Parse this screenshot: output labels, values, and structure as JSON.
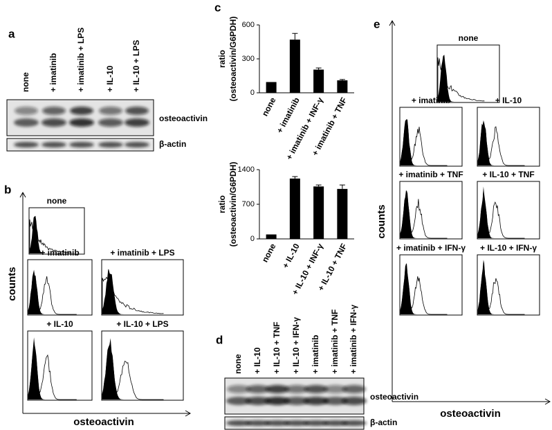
{
  "panel_a": {
    "label": "a",
    "lanes": [
      "none",
      "+ imatinib",
      "+ imatinib + LPS",
      "+ IL-10",
      "+ IL-10 + LPS"
    ],
    "bands": [
      "osteoactivin",
      "β-actin"
    ]
  },
  "panel_b": {
    "label": "b",
    "y_label": "counts",
    "x_label": "osteoactivin",
    "histograms": [
      "none",
      "+ imatinib",
      "+ imatinib + LPS",
      "+ IL-10",
      "+ IL-10 + LPS"
    ]
  },
  "panel_c": {
    "label": "c"
  },
  "chart_data": [
    {
      "type": "bar",
      "y_label": [
        "ratio",
        "(osteoactivin/G6PDH)"
      ],
      "categories": [
        "none",
        "+ imatinib",
        "+ imatinib + INF-γ",
        "+ imatinib + TNF"
      ],
      "values": [
        95,
        470,
        205,
        110
      ],
      "errors": [
        0,
        55,
        15,
        8
      ],
      "ylim": [
        0,
        600
      ],
      "yticks": [
        0,
        300,
        600
      ],
      "color": "#000000"
    },
    {
      "type": "bar",
      "y_label": [
        "ratio",
        "(osteoactivin/G6PDH)"
      ],
      "categories": [
        "none",
        "+ IL-10",
        "+ IL-10 + INF-γ",
        "+ IL-10 + TNF"
      ],
      "values": [
        90,
        1220,
        1060,
        1010
      ],
      "errors": [
        0,
        40,
        30,
        80
      ],
      "ylim": [
        0,
        1400
      ],
      "yticks": [
        0,
        700,
        1400
      ],
      "color": "#000000"
    }
  ],
  "panel_d": {
    "label": "d",
    "lanes": [
      "none",
      "+ IL-10",
      "+ IL-10 + TNF",
      "+ IL-10 + IFN-γ",
      "+ imatinib",
      "+ imatinib + TNF",
      "+ imatinib + IFN-γ"
    ],
    "bands": [
      "osteoactivin",
      "β-actin"
    ]
  },
  "panel_e": {
    "label": "e",
    "y_label": "counts",
    "x_label": "osteoactivin",
    "histograms": [
      "none",
      "+ imatinib",
      "+ IL-10",
      "+ imatinib + TNF",
      "+ IL-10 + TNF",
      "+ imatinib + IFN-γ",
      "+ IL-10 + IFN-γ"
    ]
  }
}
